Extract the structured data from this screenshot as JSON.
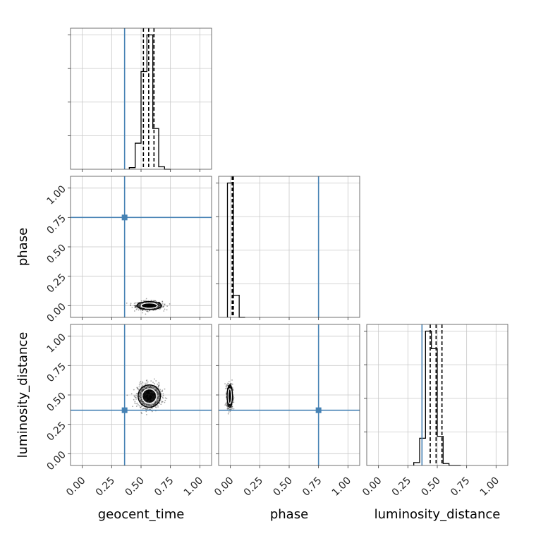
{
  "truth_color": "#4682b4",
  "chart_data": {
    "type": "corner",
    "parameters": [
      "geocent_time",
      "phase",
      "luminosity_distance"
    ],
    "axis_range": [
      -0.1,
      1.1
    ],
    "ticks": [
      0.0,
      0.25,
      0.5,
      0.75,
      1.0
    ],
    "tick_labels": [
      "0.00",
      "0.25",
      "0.50",
      "0.75",
      "1.00"
    ],
    "truths": {
      "geocent_time": 0.36,
      "phase": 0.75,
      "luminosity_distance": 0.37
    },
    "marginals": {
      "geocent_time": {
        "bins": [
          0.4,
          0.45,
          0.5,
          0.55,
          0.6,
          0.65,
          0.7,
          0.75
        ],
        "counts": [
          2,
          32,
          120,
          165,
          50,
          3,
          0
        ],
        "quantiles": [
          0.52,
          0.565,
          0.61
        ]
      },
      "phase": {
        "bins": [
          -0.025,
          0.025,
          0.075,
          0.125
        ],
        "counts": [
          170,
          28,
          0
        ],
        "quantiles": [
          0.015,
          0.02,
          0.025
        ]
      },
      "luminosity_distance": {
        "bins": [
          0.3,
          0.35,
          0.4,
          0.45,
          0.5,
          0.55,
          0.6,
          0.65,
          0.7
        ],
        "counts": [
          3,
          28,
          138,
          120,
          30,
          2,
          0,
          0
        ],
        "quantiles": [
          0.44,
          0.49,
          0.54
        ]
      }
    },
    "joint": [
      {
        "x": "geocent_time",
        "y": "phase",
        "center": [
          0.57,
          0.0
        ],
        "spread": [
          0.055,
          0.018
        ]
      },
      {
        "x": "geocent_time",
        "y": "luminosity_distance",
        "center": [
          0.57,
          0.49
        ],
        "spread": [
          0.05,
          0.05
        ]
      },
      {
        "x": "phase",
        "y": "luminosity_distance",
        "center": [
          -0.005,
          0.49
        ],
        "spread": [
          0.012,
          0.05
        ]
      }
    ]
  }
}
